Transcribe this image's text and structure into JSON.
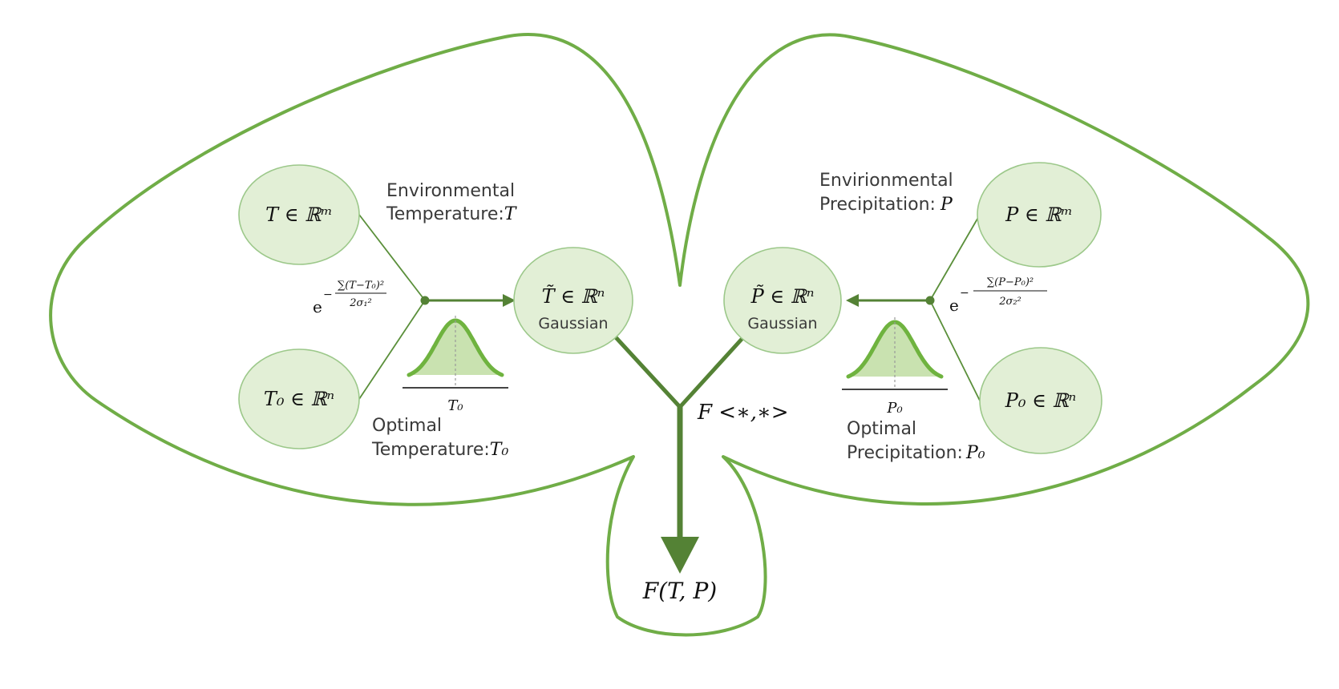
{
  "nodes": {
    "t_env": {
      "text": "T ∈ ℝᵐ"
    },
    "t_opt": {
      "text": "T₀ ∈ ℝⁿ"
    },
    "t_gauss": {
      "text": "T̃ ∈ ℝⁿ",
      "sub": "Gaussian"
    },
    "p_env": {
      "text": "P ∈ ℝᵐ"
    },
    "p_opt": {
      "text": "P₀ ∈ ℝⁿ"
    },
    "p_gauss": {
      "text": "P̃ ∈ ℝⁿ",
      "sub": "Gaussian"
    }
  },
  "labels": {
    "env_temp_line1": "Environmental",
    "env_temp_line2": "Temperature:",
    "env_temp_var": "T",
    "opt_temp_line1": "Optimal",
    "opt_temp_line2": "Temperature:",
    "opt_temp_var": "T₀",
    "env_precip_line1": "Envirionmental",
    "env_precip_line2": "Precipitation:",
    "env_precip_var": "P",
    "opt_precip_line1": "Optimal",
    "opt_precip_line2": "Precipitation:",
    "opt_precip_var": "P₀"
  },
  "formulas": {
    "temp_e": "e",
    "temp_minus": "−",
    "temp_num": "∑(T−T₀)²",
    "temp_den": "2σ₁²",
    "precip_e": "e",
    "precip_minus": "−",
    "precip_num": "∑(P−P₀)²",
    "precip_den": "2σ₂²"
  },
  "curves": {
    "temp_axis_label": "T₀",
    "precip_axis_label": "P₀"
  },
  "combine": {
    "operator": "F <∗,∗>",
    "output": "F(T, P)"
  },
  "colors": {
    "leaf": "#70ad47",
    "node_fill": "#e2efd6",
    "node_stroke": "#9cc88a",
    "branch": "#548235"
  }
}
